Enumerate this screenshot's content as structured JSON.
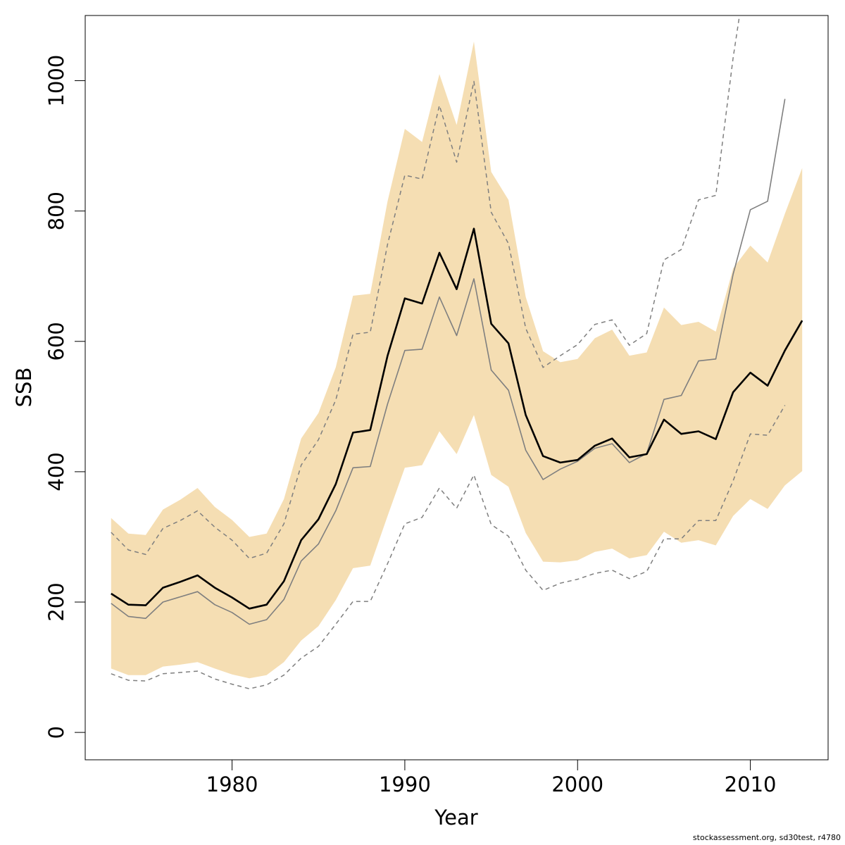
{
  "chart_data": {
    "type": "line",
    "xlabel": "Year",
    "ylabel": "SSB",
    "xlim": [
      1971.5,
      2014.5
    ],
    "ylim": [
      -42,
      1100
    ],
    "x_ticks": [
      1980,
      1990,
      2000,
      2010
    ],
    "y_ticks": [
      0,
      200,
      400,
      600,
      800,
      1000
    ],
    "grid": false,
    "legend": "none",
    "colors": {
      "band": "#f5deb3",
      "estimate": "#000000",
      "retro": "#7f7f7f",
      "retro_ci": "#7f7f7f"
    },
    "band": {
      "x": [
        1973,
        1974,
        1975,
        1976,
        1977,
        1978,
        1979,
        1980,
        1981,
        1982,
        1983,
        1984,
        1985,
        1986,
        1987,
        1988,
        1989,
        1990,
        1991,
        1992,
        1993,
        1994,
        1995,
        1996,
        1997,
        1998,
        1999,
        2000,
        2001,
        2002,
        2003,
        2004,
        2005,
        2006,
        2007,
        2008,
        2009,
        2010,
        2011,
        2012,
        2013
      ],
      "lower": [
        98,
        88,
        88,
        101,
        104,
        108,
        98,
        89,
        83,
        88,
        108,
        141,
        163,
        203,
        252,
        256,
        332,
        406,
        410,
        462,
        427,
        487,
        395,
        377,
        306,
        262,
        261,
        264,
        277,
        282,
        267,
        272,
        308,
        291,
        295,
        287,
        332,
        358,
        343,
        379,
        401
      ],
      "upper": [
        329,
        305,
        303,
        342,
        357,
        375,
        346,
        326,
        300,
        305,
        358,
        451,
        490,
        560,
        670,
        673,
        815,
        926,
        906,
        1010,
        932,
        1060,
        860,
        817,
        668,
        585,
        568,
        573,
        605,
        618,
        578,
        583,
        652,
        625,
        630,
        615,
        712,
        747,
        721,
        796,
        866
      ]
    },
    "series": [
      {
        "style": "solid-thick",
        "x": [
          1973,
          1974,
          1975,
          1976,
          1977,
          1978,
          1979,
          1980,
          1981,
          1982,
          1983,
          1984,
          1985,
          1986,
          1987,
          1988,
          1989,
          1990,
          1991,
          1992,
          1993,
          1994,
          1995,
          1996,
          1997,
          1998,
          1999,
          2000,
          2001,
          2002,
          2003,
          2004,
          2005,
          2006,
          2007,
          2008,
          2009,
          2010,
          2011,
          2012,
          2013
        ],
        "values": [
          213,
          196,
          195,
          222,
          231,
          241,
          222,
          207,
          190,
          196,
          232,
          295,
          327,
          381,
          460,
          464,
          578,
          666,
          658,
          736,
          680,
          773,
          627,
          597,
          487,
          424,
          414,
          418,
          440,
          451,
          422,
          427,
          480,
          458,
          462,
          450,
          522,
          552,
          532,
          586,
          632
        ]
      },
      {
        "style": "solid-thin-grey",
        "x": [
          1973,
          1974,
          1975,
          1976,
          1977,
          1978,
          1979,
          1980,
          1981,
          1982,
          1983,
          1984,
          1985,
          1986,
          1987,
          1988,
          1989,
          1990,
          1991,
          1992,
          1993,
          1994,
          1995,
          1996,
          1997,
          1998,
          1999,
          2000,
          2001,
          2002,
          2003,
          2004,
          2005,
          2006,
          2007,
          2008,
          2009,
          2010,
          2011,
          2012
        ],
        "values": [
          198,
          178,
          175,
          200,
          208,
          216,
          196,
          184,
          166,
          173,
          204,
          263,
          289,
          340,
          406,
          408,
          504,
          586,
          588,
          668,
          609,
          696,
          556,
          525,
          433,
          388,
          404,
          416,
          436,
          443,
          414,
          428,
          511,
          517,
          570,
          573,
          703,
          802,
          815,
          972
        ]
      },
      {
        "style": "dashed-grey",
        "x": [
          1973,
          1974,
          1975,
          1976,
          1977,
          1978,
          1979,
          1980,
          1981,
          1982,
          1983,
          1984,
          1985,
          1986,
          1987,
          1988,
          1989,
          1990,
          1991,
          1992,
          1993,
          1994,
          1995,
          1996,
          1997,
          1998,
          1999,
          2000,
          2001,
          2002,
          2003,
          2004,
          2005,
          2006,
          2007,
          2008,
          2009,
          2010,
          2011,
          2012
        ],
        "values": [
          90,
          80,
          79,
          90,
          92,
          94,
          82,
          74,
          67,
          73,
          88,
          114,
          132,
          166,
          201,
          201,
          259,
          320,
          330,
          375,
          344,
          395,
          319,
          301,
          249,
          218,
          229,
          235,
          244,
          249,
          236,
          247,
          297,
          297,
          325,
          325,
          386,
          458,
          456,
          502
        ]
      },
      {
        "style": "dashed-grey",
        "x": [
          1973,
          1974,
          1975,
          1976,
          1977,
          1978,
          1979,
          1980,
          1981,
          1982,
          1983,
          1984,
          1985,
          1986,
          1987,
          1988,
          1989,
          1990,
          1991,
          1992,
          1993,
          1994,
          1995,
          1996,
          1997,
          1998,
          1999,
          2000,
          2001,
          2002,
          2003,
          2004,
          2005,
          2006,
          2007,
          2008,
          2009,
          2010
        ],
        "values": [
          307,
          280,
          273,
          313,
          325,
          340,
          315,
          295,
          267,
          275,
          320,
          410,
          449,
          510,
          611,
          614,
          749,
          855,
          849,
          962,
          875,
          999,
          798,
          750,
          620,
          560,
          578,
          595,
          626,
          633,
          594,
          612,
          725,
          741,
          817,
          824,
          1035,
          1210
        ]
      }
    ]
  },
  "credit": "stockassessment.org, sd30test, r4780"
}
